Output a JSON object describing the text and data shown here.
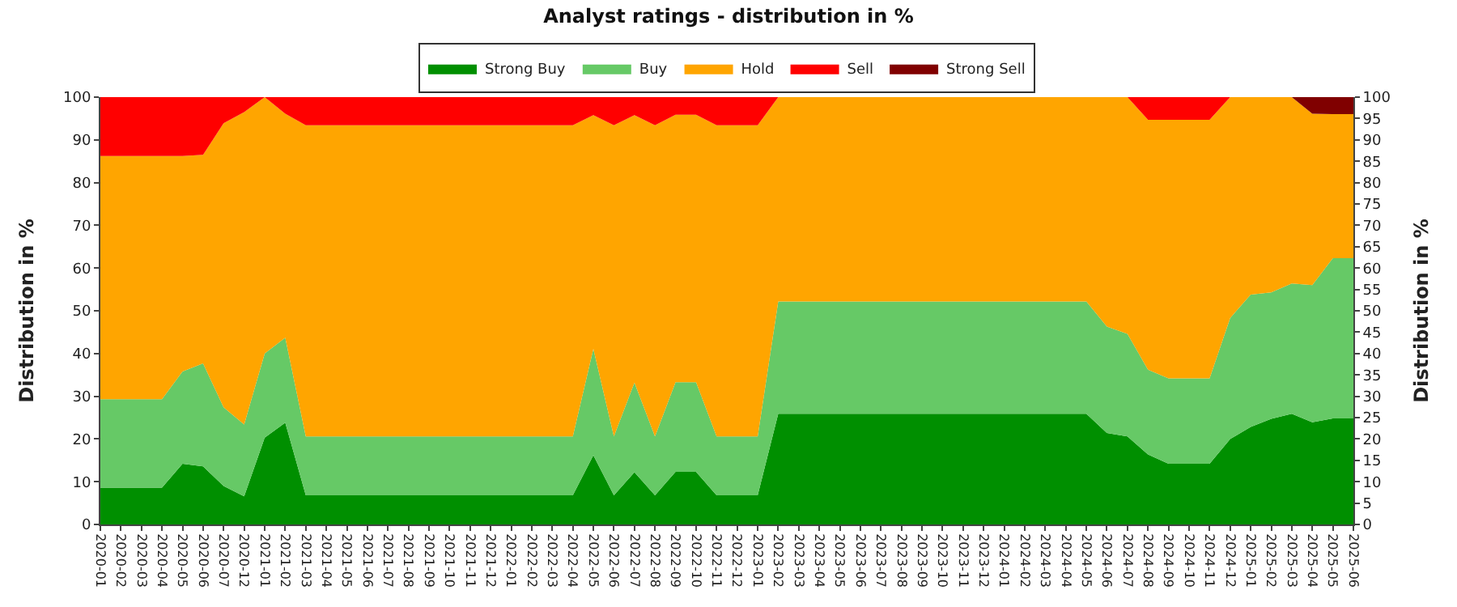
{
  "chart_data": {
    "type": "area",
    "stacked": true,
    "title": "Analyst ratings - distribution in %",
    "ylabel": "Distribution in %",
    "y2label": "Distribution in %",
    "categories": [
      "2020-01",
      "2020-02",
      "2020-03",
      "2020-04",
      "2020-05",
      "2020-06",
      "2020-07",
      "2020-12",
      "2021-01",
      "2021-02",
      "2021-03",
      "2021-04",
      "2021-05",
      "2021-06",
      "2021-07",
      "2021-08",
      "2021-09",
      "2021-10",
      "2021-11",
      "2021-12",
      "2022-01",
      "2022-02",
      "2022-03",
      "2022-04",
      "2022-05",
      "2022-06",
      "2022-07",
      "2022-08",
      "2022-09",
      "2022-10",
      "2022-11",
      "2022-12",
      "2023-01",
      "2023-02",
      "2023-03",
      "2023-04",
      "2023-05",
      "2023-06",
      "2023-07",
      "2023-08",
      "2023-09",
      "2023-10",
      "2023-11",
      "2023-12",
      "2024-01",
      "2024-02",
      "2024-03",
      "2024-04",
      "2024-05",
      "2024-06",
      "2024-07",
      "2024-08",
      "2024-09",
      "2024-10",
      "2024-11",
      "2024-12",
      "2025-01",
      "2025-02",
      "2025-03",
      "2025-04",
      "2025-05",
      "2025-06"
    ],
    "series": [
      {
        "name": "Strong Buy",
        "color": "#008f00",
        "values": [
          8.6,
          8.6,
          8.6,
          8.6,
          14.2,
          13.6,
          9.0,
          6.6,
          20.3,
          23.8,
          6.8,
          6.8,
          6.8,
          6.8,
          6.8,
          6.8,
          6.8,
          6.8,
          6.8,
          6.8,
          6.8,
          6.8,
          6.8,
          6.8,
          16.2,
          6.8,
          12.2,
          6.8,
          12.3,
          12.3,
          6.8,
          6.8,
          6.8,
          25.9,
          25.9,
          25.9,
          25.9,
          25.9,
          25.9,
          25.9,
          25.9,
          25.9,
          25.9,
          25.9,
          25.9,
          25.9,
          25.9,
          25.9,
          25.9,
          21.4,
          20.6,
          16.4,
          14.2,
          14.2,
          14.2,
          20.0,
          22.8,
          24.7,
          25.9,
          23.9,
          24.8,
          24.8
        ]
      },
      {
        "name": "Buy",
        "color": "#66c966",
        "values": [
          20.7,
          20.7,
          20.7,
          20.7,
          21.6,
          24.1,
          18.4,
          16.8,
          19.7,
          19.9,
          13.8,
          13.8,
          13.8,
          13.8,
          13.8,
          13.8,
          13.8,
          13.8,
          13.8,
          13.8,
          13.8,
          13.8,
          13.8,
          13.8,
          24.9,
          13.8,
          21.0,
          13.8,
          21.0,
          21.0,
          13.8,
          13.8,
          13.8,
          26.3,
          26.3,
          26.3,
          26.3,
          26.3,
          26.3,
          26.3,
          26.3,
          26.3,
          26.3,
          26.3,
          26.3,
          26.3,
          26.3,
          26.3,
          26.3,
          24.9,
          24.0,
          19.8,
          20.0,
          20.0,
          20.0,
          28.3,
          31.0,
          29.6,
          30.5,
          32.1,
          37.5,
          37.5
        ]
      },
      {
        "name": "Hold",
        "color": "#ffa500",
        "values": [
          56.9,
          56.9,
          56.9,
          56.9,
          50.4,
          48.8,
          66.5,
          73.1,
          60.0,
          52.4,
          72.8,
          72.8,
          72.8,
          72.8,
          72.8,
          72.8,
          72.8,
          72.8,
          72.8,
          72.8,
          72.8,
          72.8,
          72.8,
          72.8,
          54.7,
          72.8,
          62.6,
          72.8,
          62.6,
          62.6,
          72.8,
          72.8,
          72.8,
          47.8,
          47.8,
          47.8,
          47.8,
          47.8,
          47.8,
          47.8,
          47.8,
          47.8,
          47.8,
          47.8,
          47.8,
          47.8,
          47.8,
          47.8,
          47.8,
          53.7,
          55.4,
          58.5,
          60.5,
          60.5,
          60.5,
          51.7,
          46.2,
          45.7,
          43.6,
          40.1,
          33.7,
          33.7
        ]
      },
      {
        "name": "Sell",
        "color": "#ff0000",
        "values": [
          13.8,
          13.8,
          13.8,
          13.8,
          13.8,
          13.5,
          6.1,
          3.5,
          0,
          3.9,
          6.6,
          6.6,
          6.6,
          6.6,
          6.6,
          6.6,
          6.6,
          6.6,
          6.6,
          6.6,
          6.6,
          6.6,
          6.6,
          6.6,
          4.2,
          6.6,
          4.2,
          6.6,
          4.1,
          4.1,
          6.6,
          6.6,
          6.6,
          0,
          0,
          0,
          0,
          0,
          0,
          0,
          0,
          0,
          0,
          0,
          0,
          0,
          0,
          0,
          0,
          0,
          0,
          5.3,
          5.3,
          5.3,
          5.3,
          0,
          0,
          0,
          0,
          0,
          0,
          0
        ]
      },
      {
        "name": "Strong Sell",
        "color": "#800000",
        "values": [
          0,
          0,
          0,
          0,
          0,
          0,
          0,
          0,
          0,
          0,
          0,
          0,
          0,
          0,
          0,
          0,
          0,
          0,
          0,
          0,
          0,
          0,
          0,
          0,
          0,
          0,
          0,
          0,
          0,
          0,
          0,
          0,
          0,
          0,
          0,
          0,
          0,
          0,
          0,
          0,
          0,
          0,
          0,
          0,
          0,
          0,
          0,
          0,
          0,
          0,
          0,
          0,
          0,
          0,
          0,
          0,
          0,
          0,
          0,
          3.9,
          4.0,
          4.0
        ]
      }
    ],
    "ylim": [
      0,
      100
    ],
    "yticks": [
      0,
      10,
      20,
      30,
      40,
      50,
      60,
      70,
      80,
      90,
      100
    ],
    "y2lim": [
      0,
      100
    ],
    "y2ticks": [
      0,
      5,
      10,
      15,
      20,
      25,
      30,
      35,
      40,
      45,
      50,
      55,
      60,
      65,
      70,
      75,
      80,
      85,
      90,
      95,
      100
    ],
    "grid": "y",
    "legend": "top"
  }
}
